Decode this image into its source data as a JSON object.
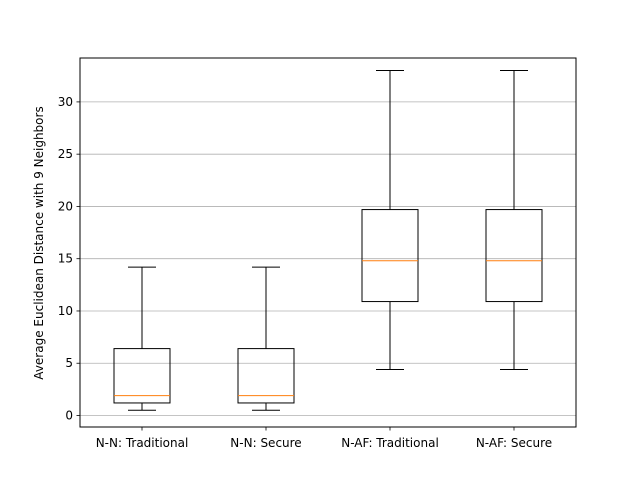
{
  "chart_data": {
    "type": "boxplot",
    "title": "",
    "xlabel": "",
    "ylabel": "Average Euclidean Distance with 9 Neighbors",
    "ylim": [
      -1.1,
      34.2
    ],
    "yticks": [
      0,
      5,
      10,
      15,
      20,
      25,
      30
    ],
    "grid": "y",
    "categories": [
      "N-N: Traditional",
      "N-N: Secure",
      "N-AF: Traditional",
      "N-AF: Secure"
    ],
    "boxes": [
      {
        "whisker_low": 0.5,
        "q1": 1.2,
        "median": 1.9,
        "q3": 6.4,
        "whisker_high": 14.2
      },
      {
        "whisker_low": 0.5,
        "q1": 1.2,
        "median": 1.9,
        "q3": 6.4,
        "whisker_high": 14.2
      },
      {
        "whisker_low": 4.4,
        "q1": 10.9,
        "median": 14.8,
        "q3": 19.7,
        "whisker_high": 33.0
      },
      {
        "whisker_low": 4.4,
        "q1": 10.9,
        "median": 14.8,
        "q3": 19.7,
        "whisker_high": 33.0
      }
    ],
    "colors": {
      "box": "#000000",
      "median": "#ff7f0e",
      "grid": "#b0b0b0"
    }
  }
}
